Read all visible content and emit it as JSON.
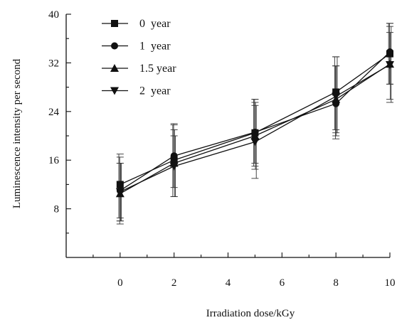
{
  "chart_data": {
    "type": "line",
    "title": "",
    "xlabel": "Irradiation dose/kGy",
    "ylabel": "Luminescence intensity per second",
    "xlim": [
      -2,
      10
    ],
    "ylim": [
      0,
      40
    ],
    "x_ticks": [
      0,
      2,
      4,
      6,
      8,
      10
    ],
    "y_ticks": [
      8,
      16,
      24,
      32,
      40
    ],
    "x": [
      0,
      2,
      5,
      8,
      10
    ],
    "legend_position": "top-left",
    "grid": false,
    "series": [
      {
        "name": "0  year",
        "marker": "square",
        "values": [
          12.0,
          16.0,
          20.5,
          27.2,
          33.5
        ],
        "error_low": [
          6.5,
          10.0,
          15.0,
          21.0,
          28.5
        ],
        "error_high": [
          17.0,
          21.8,
          26.0,
          33.0,
          38.5
        ]
      },
      {
        "name": "1  year",
        "marker": "circle",
        "values": [
          11.0,
          16.7,
          20.6,
          25.3,
          33.8
        ],
        "error_low": [
          5.5,
          11.5,
          15.5,
          19.5,
          28.5
        ],
        "error_high": [
          16.5,
          22.0,
          26.0,
          31.5,
          38.5
        ]
      },
      {
        "name": "1.5 year",
        "marker": "triangle-up",
        "values": [
          10.5,
          15.5,
          20.0,
          26.0,
          31.8
        ],
        "error_low": [
          6.0,
          10.0,
          14.5,
          20.0,
          26.0
        ],
        "error_high": [
          15.5,
          21.0,
          25.5,
          31.5,
          37.0
        ]
      },
      {
        "name": "2  year",
        "marker": "triangle-down",
        "values": [
          10.8,
          15.0,
          19.0,
          26.5,
          31.7
        ],
        "error_low": [
          6.0,
          10.0,
          13.0,
          20.5,
          25.5
        ],
        "error_high": [
          15.5,
          20.0,
          25.0,
          33.0,
          38.0
        ]
      }
    ]
  }
}
